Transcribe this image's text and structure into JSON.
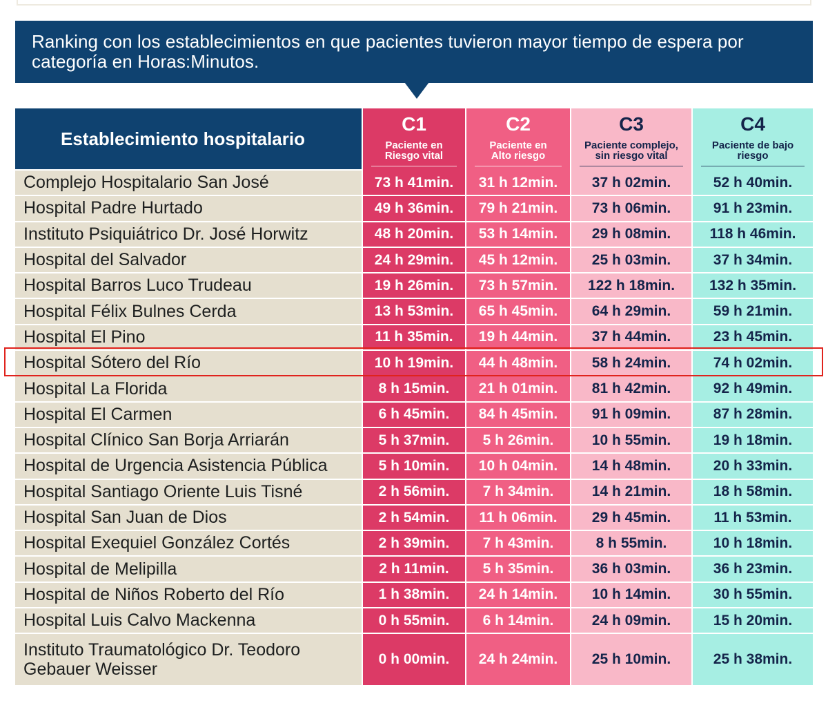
{
  "intro": {
    "title": "Ranking con los establecimientos en que pacientes tuvieron mayor tiempo de espera por categoría en Horas:Minutos."
  },
  "table": {
    "header_name": "Establecimiento hospitalario",
    "categories": [
      {
        "code": "C1",
        "desc_line1": "Paciente en",
        "desc_line2": "Riesgo vital",
        "color": "#dc3a66"
      },
      {
        "code": "C2",
        "desc_line1": "Paciente en",
        "desc_line2": "Alto riesgo",
        "color": "#f05f84"
      },
      {
        "code": "C3",
        "desc_line1": "Paciente complejo,",
        "desc_line2": "sin riesgo vital",
        "color": "#f9b8c8"
      },
      {
        "code": "C4",
        "desc_line1": "Paciente de bajo",
        "desc_line2": "riesgo",
        "color": "#a6eee3"
      }
    ],
    "rows": [
      {
        "name": "Complejo Hospitalario San José",
        "c1": "73 h 41min.",
        "c2": "31 h 12min.",
        "c3": "37 h 02min.",
        "c4": "52 h 40min."
      },
      {
        "name": "Hospital Padre Hurtado",
        "c1": "49 h 36min.",
        "c2": "79 h 21min.",
        "c3": "73 h 06min.",
        "c4": "91 h 23min."
      },
      {
        "name": "Instituto Psiquiátrico Dr. José Horwitz",
        "c1": "48 h 20min.",
        "c2": "53 h 14min.",
        "c3": "29 h 08min.",
        "c4": "118 h 46min."
      },
      {
        "name": "Hospital del Salvador",
        "c1": "24 h 29min.",
        "c2": "45 h 12min.",
        "c3": "25 h 03min.",
        "c4": "37 h 34min."
      },
      {
        "name": "Hospital Barros Luco Trudeau",
        "c1": "19 h 26min.",
        "c2": "73 h 57min.",
        "c3": "122 h 18min.",
        "c4": "132 h 35min."
      },
      {
        "name": "Hospital Félix Bulnes Cerda",
        "c1": "13 h 53min.",
        "c2": "65 h 45min.",
        "c3": "64 h 29min.",
        "c4": "59 h 21min."
      },
      {
        "name": "Hospital El Pino",
        "c1": "11 h 35min.",
        "c2": "19 h 44min.",
        "c3": "37 h 44min.",
        "c4": "23 h 45min."
      },
      {
        "name": "Hospital Sótero del Río",
        "c1": "10 h 19min.",
        "c2": "44 h 48min.",
        "c3": "58 h 24min.",
        "c4": "74 h 02min."
      },
      {
        "name": "Hospital La Florida",
        "c1": "8 h 15min.",
        "c2": "21 h 01min.",
        "c3": "81 h 42min.",
        "c4": "92 h 49min."
      },
      {
        "name": "Hospital El Carmen",
        "c1": "6 h 45min.",
        "c2": "84 h 45min.",
        "c3": "91 h 09min.",
        "c4": "87 h 28min."
      },
      {
        "name": "Hospital Clínico San Borja Arriarán",
        "c1": "5 h 37min.",
        "c2": "5 h 26min.",
        "c3": "10 h 55min.",
        "c4": "19 h 18min."
      },
      {
        "name": "Hospital de Urgencia Asistencia Pública",
        "c1": "5 h 10min.",
        "c2": "10 h 04min.",
        "c3": "14 h 48min.",
        "c4": "20 h 33min."
      },
      {
        "name": "Hospital Santiago Oriente Luis Tisné",
        "c1": "2 h 56min.",
        "c2": "7 h 34min.",
        "c3": "14 h 21min.",
        "c4": "18 h 58min."
      },
      {
        "name": "Hospital San Juan de Dios",
        "c1": "2 h 54min.",
        "c2": "11 h 06min.",
        "c3": "29 h 45min.",
        "c4": "11 h 53min."
      },
      {
        "name": "Hospital Exequiel González Cortés",
        "c1": "2 h 39min.",
        "c2": "7 h 43min.",
        "c3": "8 h 55min.",
        "c4": "10 h 18min."
      },
      {
        "name": "Hospital de Melipilla",
        "c1": "2 h 11min.",
        "c2": "5 h 35min.",
        "c3": "36 h 03min.",
        "c4": "36 h 23min."
      },
      {
        "name": "Hospital de Niños Roberto del Río",
        "c1": "1 h 38min.",
        "c2": "24 h 14min.",
        "c3": "10 h 14min.",
        "c4": "30 h 55min."
      },
      {
        "name": "Hospital Luis Calvo Mackenna",
        "c1": "0 h 55min.",
        "c2": "6 h 14min.",
        "c3": "24 h 09min.",
        "c4": "15 h 20min."
      },
      {
        "name": "Instituto Traumatológico Dr. Teodoro Gebauer Weisser",
        "c1": "0 h 00min.",
        "c2": "24 h 24min.",
        "c3": "25 h 10min.",
        "c4": "25 h 38min."
      }
    ],
    "highlighted_row": "Hospital Sótero del Río",
    "highlight_color": "#e0231d"
  }
}
